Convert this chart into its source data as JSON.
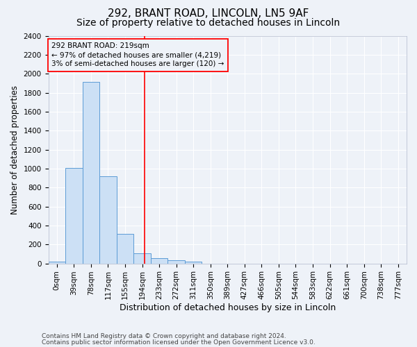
{
  "title_line1": "292, BRANT ROAD, LINCOLN, LN5 9AF",
  "title_line2": "Size of property relative to detached houses in Lincoln",
  "xlabel": "Distribution of detached houses by size in Lincoln",
  "ylabel": "Number of detached properties",
  "bar_labels": [
    "0sqm",
    "39sqm",
    "78sqm",
    "117sqm",
    "155sqm",
    "194sqm",
    "233sqm",
    "272sqm",
    "311sqm",
    "350sqm",
    "389sqm",
    "427sqm",
    "466sqm",
    "505sqm",
    "544sqm",
    "583sqm",
    "622sqm",
    "661sqm",
    "700sqm",
    "738sqm",
    "777sqm"
  ],
  "bar_values": [
    20,
    1010,
    1910,
    920,
    315,
    110,
    55,
    35,
    20,
    0,
    0,
    0,
    0,
    0,
    0,
    0,
    0,
    0,
    0,
    0,
    0
  ],
  "bar_color": "#cce0f5",
  "bar_edgecolor": "#5b9bd5",
  "ylim": [
    0,
    2400
  ],
  "yticks": [
    0,
    200,
    400,
    600,
    800,
    1000,
    1200,
    1400,
    1600,
    1800,
    2000,
    2200,
    2400
  ],
  "vline_x": 5.64,
  "vline_color": "red",
  "annotation_line1": "292 BRANT ROAD: 219sqm",
  "annotation_line2": "← 97% of detached houses are smaller (4,219)",
  "annotation_line3": "3% of semi-detached houses are larger (120) →",
  "footer_line1": "Contains HM Land Registry data © Crown copyright and database right 2024.",
  "footer_line2": "Contains public sector information licensed under the Open Government Licence v3.0.",
  "bg_color": "#eef2f8",
  "plot_bg_color": "#eef2f8",
  "grid_color": "white",
  "title1_fontsize": 11,
  "title2_fontsize": 10,
  "axis_label_fontsize": 8.5,
  "tick_fontsize": 7.5,
  "annotation_fontsize": 7.5,
  "footer_fontsize": 6.5
}
